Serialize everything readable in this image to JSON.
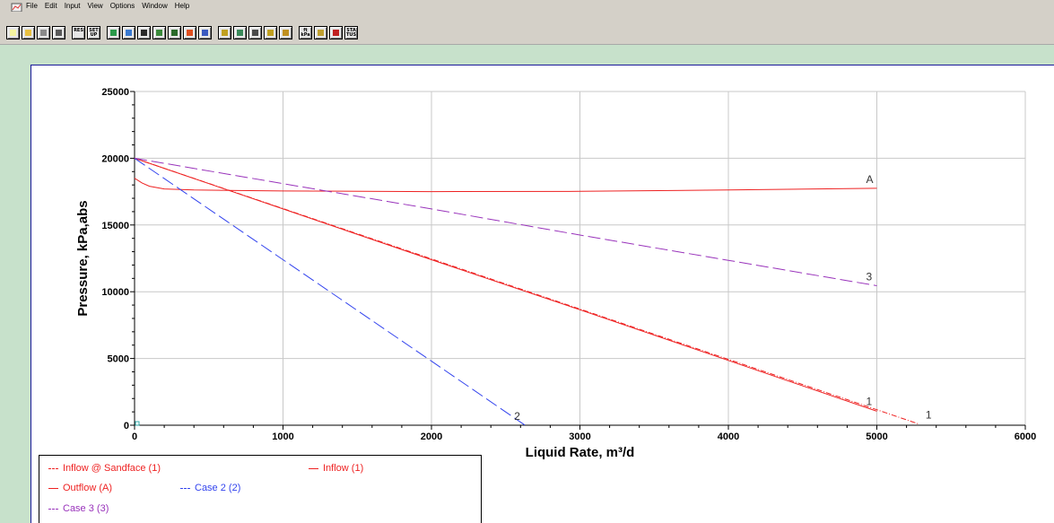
{
  "menu": [
    "File",
    "Edit",
    "Input",
    "View",
    "Options",
    "Window",
    "Help"
  ],
  "toolbar": [
    {
      "name": "new-file-icon",
      "text": "",
      "color": "#f5f5a0"
    },
    {
      "name": "open-folder-icon",
      "text": "",
      "color": "#e8c040"
    },
    {
      "name": "save-disk-icon",
      "text": "",
      "color": "#8a8a8a"
    },
    {
      "name": "print-icon",
      "text": "",
      "color": "#5a5a5a"
    },
    {
      "name": "results-icon",
      "text": "RES",
      "color": "#d0d0d0"
    },
    {
      "name": "setup-icon",
      "text": "SET UP",
      "color": "#d0d0d0"
    },
    {
      "name": "well-icon",
      "text": "",
      "color": "#2a9a4a"
    },
    {
      "name": "layers-icon",
      "text": "",
      "color": "#3a7ad0"
    },
    {
      "name": "tubing-icon",
      "text": "",
      "color": "#2a2a2a"
    },
    {
      "name": "grid-icon",
      "text": "",
      "color": "#3a8a3a"
    },
    {
      "name": "valve-icon",
      "text": "",
      "color": "#2a6a2a"
    },
    {
      "name": "warning-icon",
      "text": "",
      "color": "#e05020"
    },
    {
      "name": "plot-icon",
      "text": "",
      "color": "#3a5ac0"
    },
    {
      "name": "edit-plot-icon",
      "text": "",
      "color": "#c0a020"
    },
    {
      "name": "copy-plot-icon",
      "text": "",
      "color": "#3a8a5a"
    },
    {
      "name": "zoom-icon",
      "text": "",
      "color": "#4a4a4a"
    },
    {
      "name": "annotate-icon",
      "text": "",
      "color": "#c0a020"
    },
    {
      "name": "clipboard-icon",
      "text": "",
      "color": "#c09020"
    },
    {
      "name": "units-icon",
      "text": "ft kPa",
      "color": "#d0d0d0"
    },
    {
      "name": "table-icon",
      "text": "",
      "color": "#c0a030"
    },
    {
      "name": "stop-icon",
      "text": "",
      "color": "#c02020"
    },
    {
      "name": "status-icon",
      "text": "STA TUS",
      "color": "#d0d0d0"
    }
  ],
  "chart_data": {
    "type": "line",
    "xlabel": "Liquid Rate, m³/d",
    "ylabel": "Pressure, kPa,abs",
    "xlim": [
      0,
      6000
    ],
    "ylim": [
      0,
      25000
    ],
    "xticks": [
      "0",
      "1000",
      "2000",
      "3000",
      "4000",
      "5000",
      "6000"
    ],
    "yticks": [
      "0",
      "5000",
      "10000",
      "15000",
      "20000",
      "25000"
    ],
    "grid": true,
    "series": [
      {
        "name": "Inflow @ Sandface (1)",
        "color": "#ee2222",
        "dash": "6,2,1,2",
        "end_label": "1",
        "points": [
          [
            0,
            20000
          ],
          [
            1000,
            16230
          ],
          [
            2000,
            12460
          ],
          [
            3000,
            8700
          ],
          [
            4000,
            4930
          ],
          [
            5000,
            1160
          ],
          [
            5280,
            100
          ]
        ]
      },
      {
        "name": "Inflow (1)",
        "color": "#ee2222",
        "dash": "",
        "end_label": "1",
        "points": [
          [
            0,
            20000
          ],
          [
            1000,
            16200
          ],
          [
            2000,
            12400
          ],
          [
            3000,
            8650
          ],
          [
            4000,
            4850
          ],
          [
            5000,
            1050
          ]
        ]
      },
      {
        "name": "Outflow (A)",
        "color": "#ee2222",
        "dash": "",
        "end_label": "A",
        "points": [
          [
            0,
            18500
          ],
          [
            50,
            18150
          ],
          [
            100,
            17900
          ],
          [
            200,
            17700
          ],
          [
            400,
            17620
          ],
          [
            1000,
            17550
          ],
          [
            2000,
            17500
          ],
          [
            3000,
            17520
          ],
          [
            4000,
            17620
          ],
          [
            5000,
            17750
          ]
        ]
      },
      {
        "name": "Case 2 (2)",
        "color": "#3344ee",
        "dash": "14,5",
        "end_label": "2",
        "points": [
          [
            0,
            20000
          ],
          [
            1000,
            12400
          ],
          [
            2000,
            4800
          ],
          [
            2630,
            0
          ]
        ]
      },
      {
        "name": "Case 3 (3)",
        "color": "#9933bb",
        "dash": "14,5",
        "end_label": "3",
        "points": [
          [
            0,
            20000
          ],
          [
            1000,
            18100
          ],
          [
            2000,
            16200
          ],
          [
            3000,
            14250
          ],
          [
            4000,
            12350
          ],
          [
            5000,
            10450
          ]
        ]
      }
    ]
  }
}
